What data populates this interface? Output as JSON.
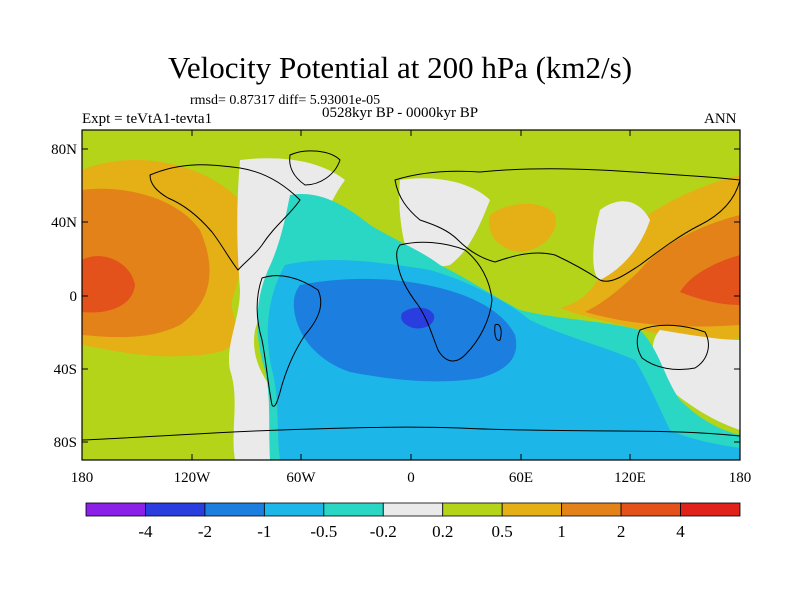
{
  "title": "Velocity Potential at 200 hPa (km2/s)",
  "stats": "rmsd= 0.87317 diff= 5.93001e-05",
  "experiment": "Expt = teVtA1-tevta1",
  "period": "0528kyr BP - 0000kyr BP",
  "season": "ANN",
  "lat_labels": [
    "80N",
    "40N",
    "0",
    "40S",
    "80S"
  ],
  "lon_labels": [
    "180",
    "120W",
    "60W",
    "0",
    "60E",
    "120E",
    "180"
  ],
  "colorbar": {
    "colors": [
      "#8b20e8",
      "#2a3ee0",
      "#1c7ede",
      "#1cb6e8",
      "#2ad6c4",
      "#eaeaea",
      "#b4d41a",
      "#e4b016",
      "#e4821a",
      "#e2521a",
      "#e0221a"
    ],
    "labels": [
      "-4",
      "-2",
      "-1",
      "-0.5",
      "-0.2",
      "0.2",
      "0.5",
      "1",
      "2",
      "4"
    ]
  }
}
